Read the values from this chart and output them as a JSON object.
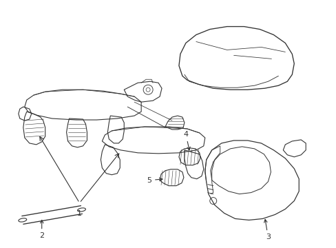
{
  "background_color": "#ffffff",
  "line_color": "#333333",
  "line_width": 0.8,
  "fig_width": 4.89,
  "fig_height": 3.6,
  "dpi": 100,
  "label_fontsize": 8
}
